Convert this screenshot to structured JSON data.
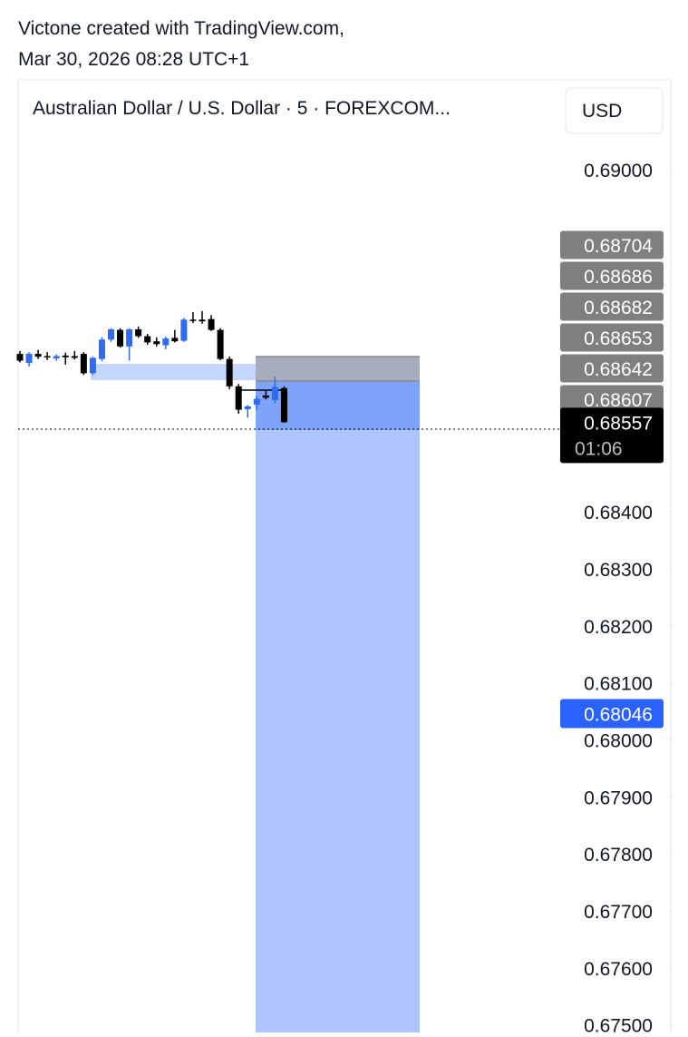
{
  "header": {
    "author_line": "Victone created with TradingView.com,",
    "date_line": "Mar 30, 2026 08:28 UTC+1"
  },
  "chart_data": {
    "type": "candlestick",
    "title": "Australian Dollar / U.S. Dollar · 5 · FOREXCOM...",
    "currency": "USD",
    "up_color": "#2f6bf0",
    "down_color": "#000000",
    "open": [
      0.68677,
      0.68661,
      0.68677,
      0.68673,
      0.68669,
      0.68674,
      0.68673,
      0.68677,
      0.68643,
      0.68668,
      0.68702,
      0.68719,
      0.6869,
      0.6872,
      0.68708,
      0.68699,
      0.68692,
      0.68705,
      0.687,
      0.68737,
      0.68737,
      0.68738,
      0.68719,
      0.68668,
      0.6862,
      0.6858,
      0.68588,
      0.68604,
      0.68596,
      0.68617
    ],
    "high": [
      0.68682,
      0.6868,
      0.68684,
      0.6868,
      0.68676,
      0.68679,
      0.68682,
      0.6868,
      0.68672,
      0.68706,
      0.68722,
      0.68722,
      0.68722,
      0.68725,
      0.68712,
      0.68706,
      0.68707,
      0.68719,
      0.6874,
      0.6875,
      0.68752,
      0.68745,
      0.68722,
      0.68672,
      0.68624,
      0.68587,
      0.68603,
      0.68612,
      0.68637,
      0.6862
    ],
    "low": [
      0.68662,
      0.68655,
      0.68668,
      0.68666,
      0.68665,
      0.68658,
      0.68667,
      0.6864,
      0.6864,
      0.68664,
      0.68698,
      0.68688,
      0.68665,
      0.68705,
      0.68693,
      0.6869,
      0.68685,
      0.68697,
      0.68698,
      0.68731,
      0.6873,
      0.68717,
      0.68666,
      0.68615,
      0.68572,
      0.68565,
      0.68579,
      0.68597,
      0.6859,
      0.68556
    ],
    "close": [
      0.68665,
      0.68677,
      0.68672,
      0.68671,
      0.68673,
      0.68671,
      0.6867,
      0.68643,
      0.6867,
      0.68702,
      0.6872,
      0.6869,
      0.6872,
      0.68708,
      0.68697,
      0.68694,
      0.68704,
      0.68699,
      0.68737,
      0.68735,
      0.68734,
      0.68719,
      0.68668,
      0.6862,
      0.68579,
      0.68585,
      0.68598,
      0.686,
      0.68619,
      0.68557
    ],
    "ylim": [
      0.674867,
      0.691576
    ],
    "yticks": [
      {
        "value": 0.69,
        "label": "0.69000"
      },
      {
        "value": 0.684,
        "label": "0.68400"
      },
      {
        "value": 0.683,
        "label": "0.68300"
      },
      {
        "value": 0.682,
        "label": "0.68200"
      },
      {
        "value": 0.681,
        "label": "0.68100"
      },
      {
        "value": 0.68,
        "label": "0.68000"
      },
      {
        "value": 0.679,
        "label": "0.67900"
      },
      {
        "value": 0.678,
        "label": "0.67800"
      },
      {
        "value": 0.677,
        "label": "0.67700"
      },
      {
        "value": 0.676,
        "label": "0.67600"
      },
      {
        "value": 0.675,
        "label": "0.67500"
      }
    ],
    "price_labels": [
      {
        "value": 0.68704,
        "color": "#7f7f7f"
      },
      {
        "value": 0.68686,
        "color": "#7f7f7f"
      },
      {
        "value": 0.68682,
        "color": "#7f7f7f"
      },
      {
        "value": 0.68653,
        "color": "#7f7f7f"
      },
      {
        "value": 0.68642,
        "color": "#7f7f7f"
      },
      {
        "value": 0.68607,
        "color": "#7f7f7f"
      }
    ],
    "last_price": {
      "value": 0.68557,
      "countdown": "01:06",
      "color": "#000000"
    },
    "target_label": {
      "value": 0.68046,
      "color": "#2962ff"
    }
  }
}
